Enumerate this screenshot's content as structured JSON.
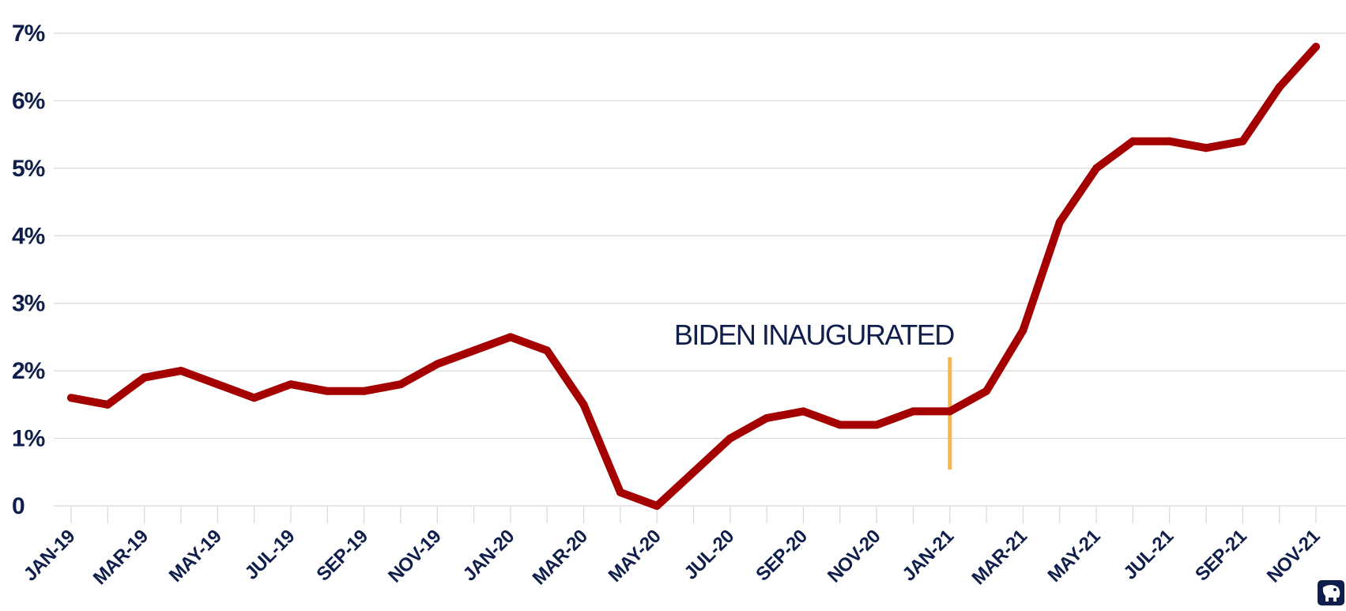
{
  "colors": {
    "line": "#A50000",
    "text": "#0F1E4A",
    "grid": "#D8D8D8",
    "marker": "#F7B84B",
    "background": "#FFFFFF"
  },
  "chart_data": {
    "type": "line",
    "title": "",
    "xlabel": "",
    "ylabel": "",
    "ylim": [
      0,
      7
    ],
    "y_ticks": [
      0,
      1,
      2,
      3,
      4,
      5,
      6,
      7
    ],
    "y_tick_labels": [
      "0",
      "1%",
      "2%",
      "3%",
      "4%",
      "5%",
      "6%",
      "7%"
    ],
    "grid": true,
    "x": [
      "JAN-19",
      "FEB-19",
      "MAR-19",
      "APR-19",
      "MAY-19",
      "JUN-19",
      "JUL-19",
      "AUG-19",
      "SEP-19",
      "OCT-19",
      "NOV-19",
      "DEC-19",
      "JAN-20",
      "FEB-20",
      "MAR-20",
      "APR-20",
      "MAY-20",
      "JUN-20",
      "JUL-20",
      "AUG-20",
      "SEP-20",
      "OCT-20",
      "NOV-20",
      "DEC-20",
      "JAN-21",
      "FEB-21",
      "MAR-21",
      "APR-21",
      "MAY-21",
      "JUN-21",
      "JUL-21",
      "AUG-21",
      "SEP-21",
      "OCT-21",
      "NOV-21"
    ],
    "x_tick_labels": [
      "JAN-19",
      "MAR-19",
      "MAY-19",
      "JUL-19",
      "SEP-19",
      "NOV-19",
      "JAN-20",
      "MAR-20",
      "MAY-20",
      "JUL-20",
      "SEP-20",
      "NOV-20",
      "JAN-21",
      "MAR-21",
      "MAY-21",
      "JUL-21",
      "SEP-21",
      "NOV-21"
    ],
    "series": [
      {
        "values": [
          1.6,
          1.5,
          1.9,
          2.0,
          1.8,
          1.6,
          1.8,
          1.7,
          1.7,
          1.8,
          2.1,
          2.3,
          2.5,
          2.3,
          1.5,
          0.2,
          0.0,
          0.5,
          1.0,
          1.3,
          1.4,
          1.2,
          1.2,
          1.4,
          1.4,
          1.7,
          2.6,
          4.2,
          5.0,
          5.4,
          5.4,
          5.3,
          5.4,
          6.2,
          6.8
        ]
      }
    ],
    "annotations": [
      {
        "text": "BIDEN INAUGURATED",
        "x": "JAN-21"
      }
    ]
  },
  "logo": {
    "icon": "elephant-logo-icon"
  }
}
